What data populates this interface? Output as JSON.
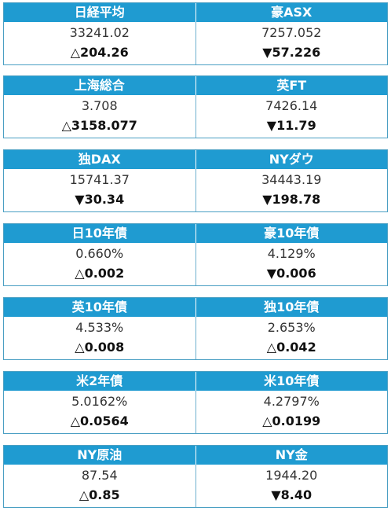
{
  "markets": [
    {
      "left": {
        "name": "日経平均",
        "value": "33241.02",
        "change": "△204.26"
      },
      "right": {
        "name": "豪ASX",
        "value": "7257.052",
        "change": "▼57.226"
      }
    },
    {
      "left": {
        "name": "上海総合",
        "value": "3.708",
        "change": "△3158.077"
      },
      "right": {
        "name": "英FT",
        "value": "7426.14",
        "change": "▼11.79"
      }
    },
    {
      "left": {
        "name": "独DAX",
        "value": "15741.37",
        "change": "▼30.34"
      },
      "right": {
        "name": "NYダウ",
        "value": "34443.19",
        "change": "▼198.78"
      }
    },
    {
      "left": {
        "name": "日10年債",
        "value": "0.660%",
        "change": "△0.002"
      },
      "right": {
        "name": "豪10年債",
        "value": "4.129%",
        "change": "▼0.006"
      }
    },
    {
      "left": {
        "name": "英10年債",
        "value": "4.533%",
        "change": "△0.008"
      },
      "right": {
        "name": "独10年債",
        "value": "2.653%",
        "change": "△0.042"
      }
    },
    {
      "left": {
        "name": "米2年債",
        "value": "5.0162%",
        "change": "△0.0564"
      },
      "right": {
        "name": "米10年債",
        "value": "4.2797%",
        "change": "△0.0199"
      }
    },
    {
      "left": {
        "name": "NY原油",
        "value": "87.54",
        "change": "△0.85"
      },
      "right": {
        "name": "NY金",
        "value": "1944.20",
        "change": "▼8.40"
      }
    }
  ],
  "colors": {
    "header_bg": "#1f9bd1",
    "header_text": "#ffffff",
    "border": "#4a9fc3"
  }
}
